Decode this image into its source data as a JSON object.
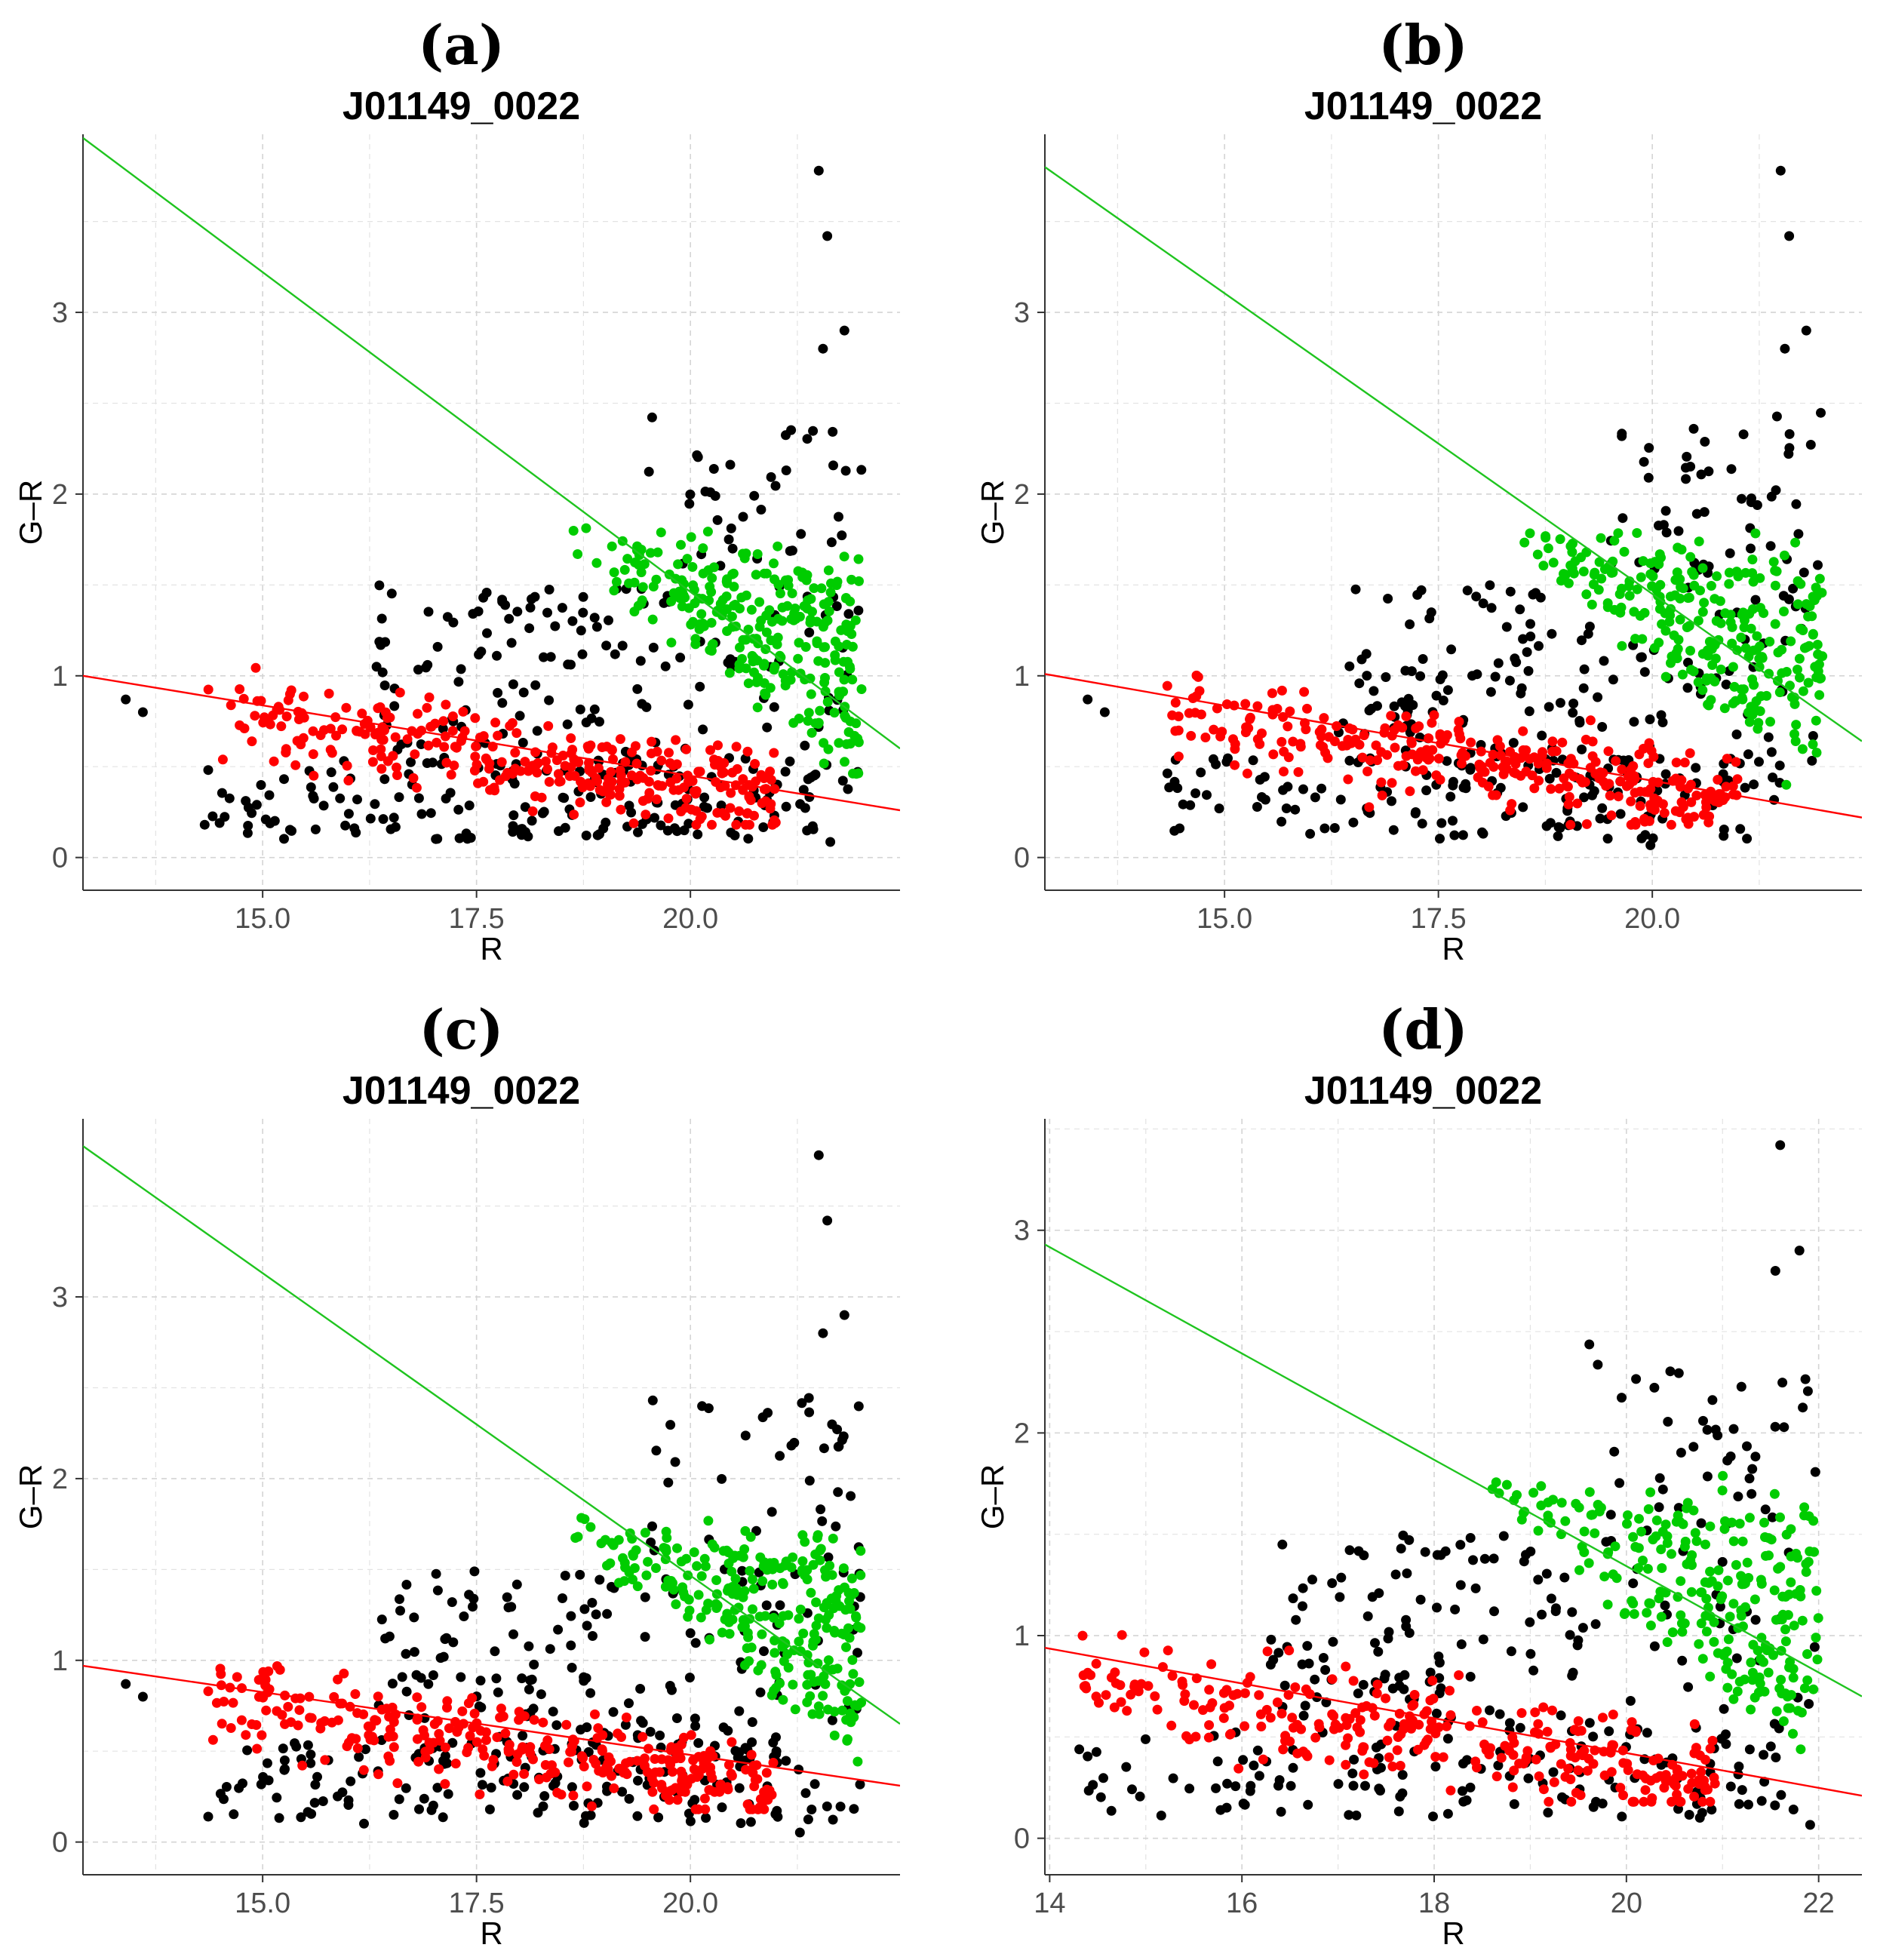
{
  "chart_data": [
    {
      "type": "scatter",
      "panel_label": "(a)",
      "title": "J01149_0022",
      "xlabel": "R",
      "ylabel": "G–R",
      "xlim": [
        12.9,
        22.45
      ],
      "ylim": [
        -0.18,
        3.98
      ],
      "x_ticks": [
        15.0,
        17.5,
        20.0
      ],
      "x_tick_labels": [
        "15.0",
        "17.5",
        "20.0"
      ],
      "y_ticks": [
        0,
        1,
        2,
        3
      ],
      "y_tick_labels": [
        "0",
        "1",
        "2",
        "3"
      ],
      "grid": true,
      "lines": [
        {
          "name": "green-line",
          "color": "#1fc41f",
          "x": [
            12.9,
            22.45
          ],
          "y": [
            3.96,
            0.6
          ]
        },
        {
          "name": "red-line",
          "color": "#ff0000",
          "x": [
            12.9,
            22.45
          ],
          "y": [
            1.0,
            0.26
          ]
        }
      ],
      "series": [
        {
          "name": "red",
          "color": "#ff0000",
          "count": 320,
          "x_range": [
            14.3,
            21.0
          ],
          "y_center": 0.7,
          "spread": 0.17
        },
        {
          "name": "green",
          "color": "#00cc00",
          "count": 280,
          "x_range": [
            18.4,
            22.0
          ],
          "y_center": 1.3,
          "spread": 0.45
        },
        {
          "name": "black",
          "color": "#000000",
          "count": 360,
          "x_range": [
            13.2,
            22.0
          ],
          "y_center": 0.8,
          "spread": 0.6
        }
      ]
    },
    {
      "type": "scatter",
      "panel_label": "(b)",
      "title": "J01149_0022",
      "xlabel": "R",
      "ylabel": "G–R",
      "xlim": [
        12.9,
        22.45
      ],
      "ylim": [
        -0.18,
        3.98
      ],
      "x_ticks": [
        15.0,
        17.5,
        20.0
      ],
      "x_tick_labels": [
        "15.0",
        "17.5",
        "20.0"
      ],
      "y_ticks": [
        0,
        1,
        2,
        3
      ],
      "y_tick_labels": [
        "0",
        "1",
        "2",
        "3"
      ],
      "grid": true,
      "lines": [
        {
          "name": "green-line",
          "color": "#1fc41f",
          "x": [
            12.9,
            22.45
          ],
          "y": [
            3.8,
            0.64
          ]
        },
        {
          "name": "red-line",
          "color": "#ff0000",
          "x": [
            12.9,
            22.45
          ],
          "y": [
            1.01,
            0.22
          ]
        }
      ],
      "series": [
        {
          "name": "red",
          "color": "#ff0000",
          "count": 310,
          "x_range": [
            14.3,
            21.0
          ],
          "y_center": 0.68,
          "spread": 0.17
        },
        {
          "name": "green",
          "color": "#00cc00",
          "count": 270,
          "x_range": [
            18.3,
            22.0
          ],
          "y_center": 1.3,
          "spread": 0.45
        },
        {
          "name": "black",
          "color": "#000000",
          "count": 360,
          "x_range": [
            13.2,
            22.0
          ],
          "y_center": 0.8,
          "spread": 0.6
        }
      ]
    },
    {
      "type": "scatter",
      "panel_label": "(c)",
      "title": "J01149_0022",
      "xlabel": "R",
      "ylabel": "G–R",
      "xlim": [
        12.9,
        22.45
      ],
      "ylim": [
        -0.18,
        3.98
      ],
      "x_ticks": [
        15.0,
        17.5,
        20.0
      ],
      "x_tick_labels": [
        "15.0",
        "17.5",
        "20.0"
      ],
      "y_ticks": [
        0,
        1,
        2,
        3
      ],
      "y_tick_labels": [
        "0",
        "1",
        "2",
        "3"
      ],
      "grid": true,
      "lines": [
        {
          "name": "green-line",
          "color": "#1fc41f",
          "x": [
            12.9,
            22.45
          ],
          "y": [
            3.83,
            0.65
          ]
        },
        {
          "name": "red-line",
          "color": "#ff0000",
          "x": [
            12.9,
            22.45
          ],
          "y": [
            0.97,
            0.31
          ]
        }
      ],
      "series": [
        {
          "name": "red",
          "color": "#ff0000",
          "count": 310,
          "x_range": [
            14.3,
            21.0
          ],
          "y_center": 0.68,
          "spread": 0.17
        },
        {
          "name": "green",
          "color": "#00cc00",
          "count": 270,
          "x_range": [
            18.4,
            22.0
          ],
          "y_center": 1.28,
          "spread": 0.45
        },
        {
          "name": "black",
          "color": "#000000",
          "count": 360,
          "x_range": [
            13.2,
            22.0
          ],
          "y_center": 0.8,
          "spread": 0.6
        }
      ]
    },
    {
      "type": "scatter",
      "panel_label": "(d)",
      "title": "J01149_0022",
      "xlabel": "R",
      "ylabel": "G–R",
      "xlim": [
        13.95,
        22.45
      ],
      "ylim": [
        -0.18,
        3.55
      ],
      "x_ticks": [
        14,
        16,
        18,
        20,
        22
      ],
      "x_tick_labels": [
        "14",
        "16",
        "18",
        "20",
        "22"
      ],
      "y_ticks": [
        0,
        1,
        2,
        3
      ],
      "y_tick_labels": [
        "0",
        "1",
        "2",
        "3"
      ],
      "grid": true,
      "lines": [
        {
          "name": "green-line",
          "color": "#1fc41f",
          "x": [
            13.95,
            22.45
          ],
          "y": [
            2.93,
            0.7
          ]
        },
        {
          "name": "red-line",
          "color": "#ff0000",
          "x": [
            13.95,
            22.45
          ],
          "y": [
            0.94,
            0.21
          ]
        }
      ],
      "series": [
        {
          "name": "red",
          "color": "#ff0000",
          "count": 300,
          "x_range": [
            14.3,
            21.0
          ],
          "y_center": 0.66,
          "spread": 0.17
        },
        {
          "name": "green",
          "color": "#00cc00",
          "count": 250,
          "x_range": [
            18.4,
            22.0
          ],
          "y_center": 1.28,
          "spread": 0.45
        },
        {
          "name": "black",
          "color": "#000000",
          "count": 330,
          "x_range": [
            14.3,
            22.0
          ],
          "y_center": 0.8,
          "spread": 0.55
        }
      ]
    }
  ]
}
